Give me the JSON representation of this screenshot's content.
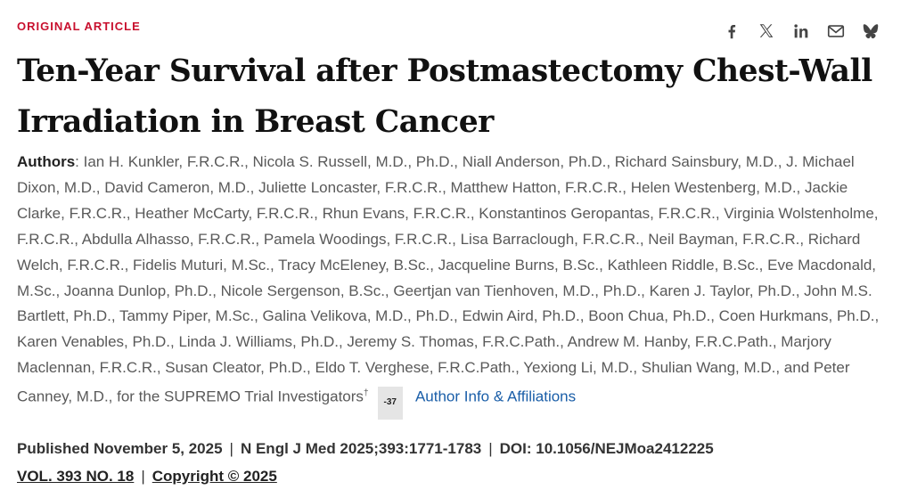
{
  "article": {
    "kicker": "ORIGINAL ARTICLE",
    "title": "Ten-Year Survival after Postmastectomy Chest-Wall Irradiation in Breast Cancer",
    "authors_label": "Authors",
    "authors_text": ": Ian H. Kunkler, F.R.C.R., Nicola S. Russell, M.D., Ph.D., Niall Anderson, Ph.D., Richard Sainsbury, M.D., J. Michael Dixon, M.D., David Cameron, M.D., Juliette Loncaster, F.R.C.R., Matthew Hatton, F.R.C.R., Helen Westenberg, M.D., Jackie Clarke, F.R.C.R., Heather McCarty, F.R.C.R., Rhun Evans, F.R.C.R., Konstantinos Geropantas, F.R.C.R., Virginia Wolstenholme, F.R.C.R., Abdulla Alhasso, F.R.C.R., Pamela Woodings, F.R.C.R., Lisa Barraclough, F.R.C.R., Neil Bayman, F.R.C.R., Richard Welch, F.R.C.R., Fidelis Muturi, M.Sc., Tracy McEleney, B.Sc., Jacqueline Burns, B.Sc., Kathleen Riddle, B.Sc., Eve Macdonald, M.Sc., Joanna Dunlop, Ph.D., Nicole Sergenson, B.Sc., Geertjan van Tienhoven, M.D., Ph.D., Karen J. Taylor, Ph.D., John M.S. Bartlett, Ph.D., Tammy Piper, M.Sc., Galina Velikova, M.D., Ph.D., Edwin Aird, Ph.D., Boon Chua, Ph.D., Coen Hurkmans, Ph.D., Karen Venables, Ph.D., Linda J. Williams, Ph.D., Jeremy S. Thomas, F.R.C.Path., Andrew M. Hanby, F.R.C.Path., Marjory Maclennan, F.R.C.R., Susan Cleator, Ph.D., Eldo T. Verghese, F.R.C.Path., Yexiong Li, M.D., Shulian Wang, M.D., and Peter Canney, M.D., for the SUPREMO Trial Investigators",
    "dagger": "†",
    "more_authors": "-37",
    "author_info_link": "Author Info & Affiliations",
    "published": "Published November 5, 2025",
    "citation": "N Engl J Med 2025;393:1771-1783",
    "doi": "DOI: 10.1056/NEJMoa2412225",
    "separator": "|",
    "volume": "VOL. 393 NO. 18",
    "copyright": "Copyright © 2025"
  },
  "share_icons": [
    "facebook-icon",
    "x-icon",
    "linkedin-icon",
    "email-icon",
    "bluesky-icon"
  ],
  "colors": {
    "kicker": "#c8102e",
    "link": "#1a5ea8",
    "title": "#111111",
    "text": "#595959"
  }
}
